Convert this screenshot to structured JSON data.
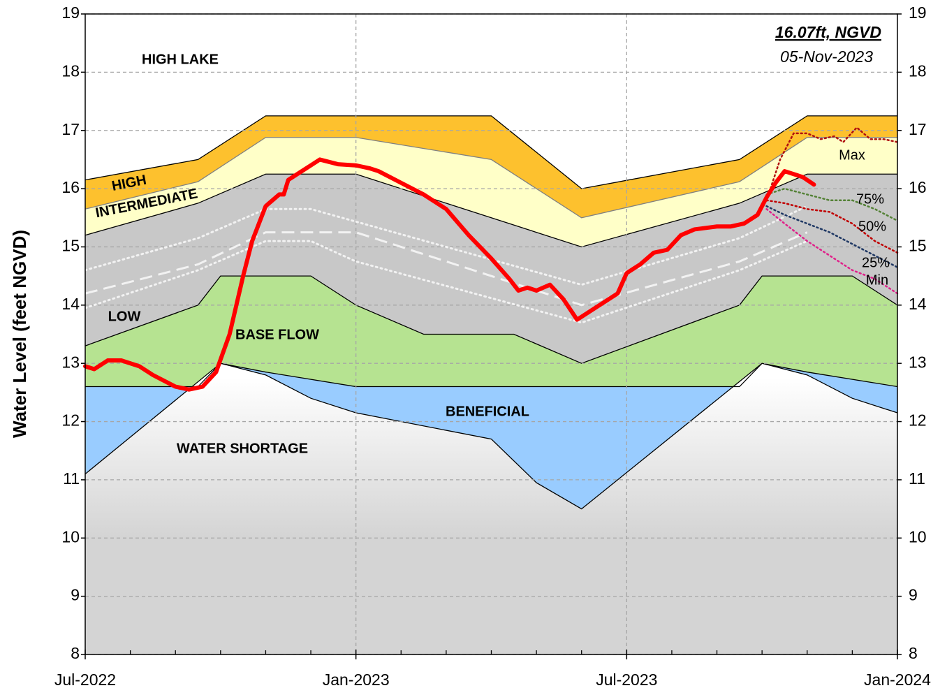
{
  "chart_data": {
    "type": "area",
    "ylabel": "Water Level (feet NGVD)",
    "xlim": [
      0,
      18
    ],
    "xticks": [
      {
        "value": 0,
        "label": "Jul-2022"
      },
      {
        "value": 6,
        "label": "Jan-2023"
      },
      {
        "value": 12,
        "label": "Jul-2023"
      },
      {
        "value": 18,
        "label": "Jan-2024"
      }
    ],
    "xminorticks": [
      1,
      2,
      3,
      4,
      5,
      7,
      8,
      9,
      10,
      11,
      13,
      14,
      15,
      16,
      17
    ],
    "ylim": [
      8,
      19
    ],
    "yticks": [
      8,
      9,
      10,
      11,
      12,
      13,
      14,
      15,
      16,
      17,
      18,
      19
    ],
    "y2lim": [
      8,
      19
    ],
    "y2ticks": [
      8,
      9,
      10,
      11,
      12,
      13,
      14,
      15,
      16,
      17,
      18,
      19
    ],
    "grid": true,
    "zones": [
      {
        "name": "WATER SHORTAGE",
        "color": "#d4d4d4",
        "x": [
          0,
          3,
          4,
          5,
          6,
          9,
          10,
          11,
          15,
          16,
          17,
          18
        ],
        "values": [
          11.1,
          13.0,
          12.8,
          12.4,
          12.15,
          11.7,
          10.95,
          10.5,
          13.0,
          12.8,
          12.4,
          12.15
        ]
      },
      {
        "name": "BENEFICIAL",
        "color": "#99ccff",
        "x": [
          0,
          2.5,
          3,
          4,
          6,
          11,
          14.5,
          15,
          16,
          18
        ],
        "values": [
          12.6,
          12.6,
          13.0,
          12.85,
          12.6,
          12.6,
          12.6,
          13.0,
          12.85,
          12.6
        ]
      },
      {
        "name": "BASE FLOW",
        "color": "#b6e391",
        "x": [
          0,
          2.5,
          3,
          5,
          6,
          7.5,
          9.5,
          11,
          14.5,
          15,
          17,
          18
        ],
        "values": [
          13.3,
          14.0,
          14.5,
          14.5,
          14.0,
          13.5,
          13.5,
          13.0,
          14.0,
          14.5,
          14.5,
          14.0
        ]
      },
      {
        "name": "LOW",
        "color": "#c8c8c8",
        "x": [
          0,
          2.5,
          4,
          6,
          9,
          11,
          14.5,
          16,
          18
        ],
        "values": [
          15.2,
          15.75,
          16.25,
          16.25,
          15.5,
          15.0,
          15.75,
          16.25,
          16.25
        ]
      },
      {
        "name": "INTERMEDIATE",
        "color": "#ffffc8",
        "x": [
          0,
          2.5,
          4,
          6,
          9,
          11,
          14.5,
          16,
          18
        ],
        "values": [
          15.65,
          16.12,
          16.88,
          16.88,
          16.5,
          15.5,
          16.12,
          16.88,
          16.88
        ]
      },
      {
        "name": "HIGH",
        "color": "#fdc12e",
        "x": [
          0,
          2.5,
          4,
          9,
          11,
          14.5,
          16,
          18
        ],
        "values": [
          16.15,
          16.5,
          17.25,
          17.25,
          16.0,
          16.5,
          17.25,
          17.25
        ]
      }
    ],
    "high_lake": {
      "name": "HIGH LAKE",
      "color": "#ffffff"
    },
    "historical": [
      {
        "style": "dotted",
        "color": "#f2f2f2",
        "x": [
          0,
          2.5,
          4,
          5,
          11,
          14.5,
          16
        ],
        "values": [
          14.6,
          15.15,
          15.65,
          15.65,
          14.35,
          15.15,
          15.7
        ]
      },
      {
        "style": "dashed",
        "color": "#f2f2f2",
        "x": [
          0,
          2.5,
          4,
          6,
          11,
          14.5,
          16
        ],
        "values": [
          14.2,
          14.7,
          15.25,
          15.25,
          14.0,
          14.75,
          15.25
        ]
      },
      {
        "style": "dotted",
        "color": "#f2f2f2",
        "x": [
          0,
          2.5,
          4,
          5,
          6,
          11,
          14.5,
          16
        ],
        "values": [
          13.95,
          14.6,
          15.1,
          15.1,
          14.75,
          13.7,
          14.6,
          15.1
        ]
      }
    ],
    "observed": {
      "color": "#ff0000",
      "x": [
        0,
        0.2,
        0.5,
        0.8,
        1.2,
        1.5,
        2,
        2.3,
        2.6,
        2.9,
        3.2,
        3.5,
        3.7,
        4,
        4.3,
        4.4,
        4.5,
        4.8,
        5,
        5.2,
        5.6,
        6,
        6.3,
        6.5,
        7,
        7.5,
        8,
        8.5,
        9,
        9.4,
        9.6,
        9.8,
        10,
        10.3,
        10.6,
        10.9,
        11,
        11.2,
        11.5,
        11.8,
        12,
        12.3,
        12.6,
        12.9,
        13.2,
        13.5,
        14,
        14.3,
        14.6,
        14.9,
        15.1,
        15.3,
        15.5,
        15.9,
        16.15
      ],
      "values": [
        12.95,
        12.9,
        13.05,
        13.05,
        12.95,
        12.8,
        12.6,
        12.55,
        12.6,
        12.85,
        13.5,
        14.5,
        15.1,
        15.7,
        15.9,
        15.9,
        16.15,
        16.3,
        16.4,
        16.5,
        16.42,
        16.4,
        16.35,
        16.3,
        16.1,
        15.9,
        15.65,
        15.2,
        14.8,
        14.45,
        14.25,
        14.3,
        14.25,
        14.35,
        14.1,
        13.75,
        13.8,
        13.9,
        14.05,
        14.2,
        14.55,
        14.7,
        14.9,
        14.95,
        15.2,
        15.3,
        15.35,
        15.35,
        15.4,
        15.55,
        15.85,
        16.1,
        16.3,
        16.2,
        16.07
      ]
    },
    "forecasts": [
      {
        "name": "Max",
        "color": "#b01010",
        "x": [
          15.1,
          15.4,
          15.7,
          16,
          16.3,
          16.6,
          16.8,
          17.1,
          17.4,
          17.7,
          18
        ],
        "values": [
          15.8,
          16.5,
          16.95,
          16.95,
          16.85,
          16.9,
          16.8,
          17.05,
          16.85,
          16.85,
          16.8
        ]
      },
      {
        "name": "75%",
        "color": "#538135",
        "x": [
          15.1,
          15.5,
          16,
          16.5,
          17,
          17.5,
          18
        ],
        "values": [
          15.9,
          16.0,
          15.9,
          15.8,
          15.8,
          15.65,
          15.45
        ]
      },
      {
        "name": "50%",
        "color": "#c00000",
        "x": [
          15.1,
          15.5,
          16,
          16.5,
          17,
          17.5,
          18
        ],
        "values": [
          15.8,
          15.75,
          15.65,
          15.6,
          15.4,
          15.1,
          14.9
        ]
      },
      {
        "name": "25%",
        "color": "#1f3864",
        "x": [
          15.1,
          15.5,
          16,
          16.5,
          17,
          17.5,
          18
        ],
        "values": [
          15.7,
          15.55,
          15.4,
          15.25,
          15.05,
          14.85,
          14.65
        ]
      },
      {
        "name": "Min",
        "color": "#e0218a",
        "x": [
          15.1,
          15.5,
          16,
          16.5,
          17,
          17.5,
          18
        ],
        "values": [
          15.65,
          15.4,
          15.1,
          14.85,
          14.6,
          14.45,
          14.2
        ]
      }
    ],
    "annotations": [
      {
        "text": "16.07ft, NGVD"
      },
      {
        "text": "05-Nov-2023"
      }
    ]
  }
}
